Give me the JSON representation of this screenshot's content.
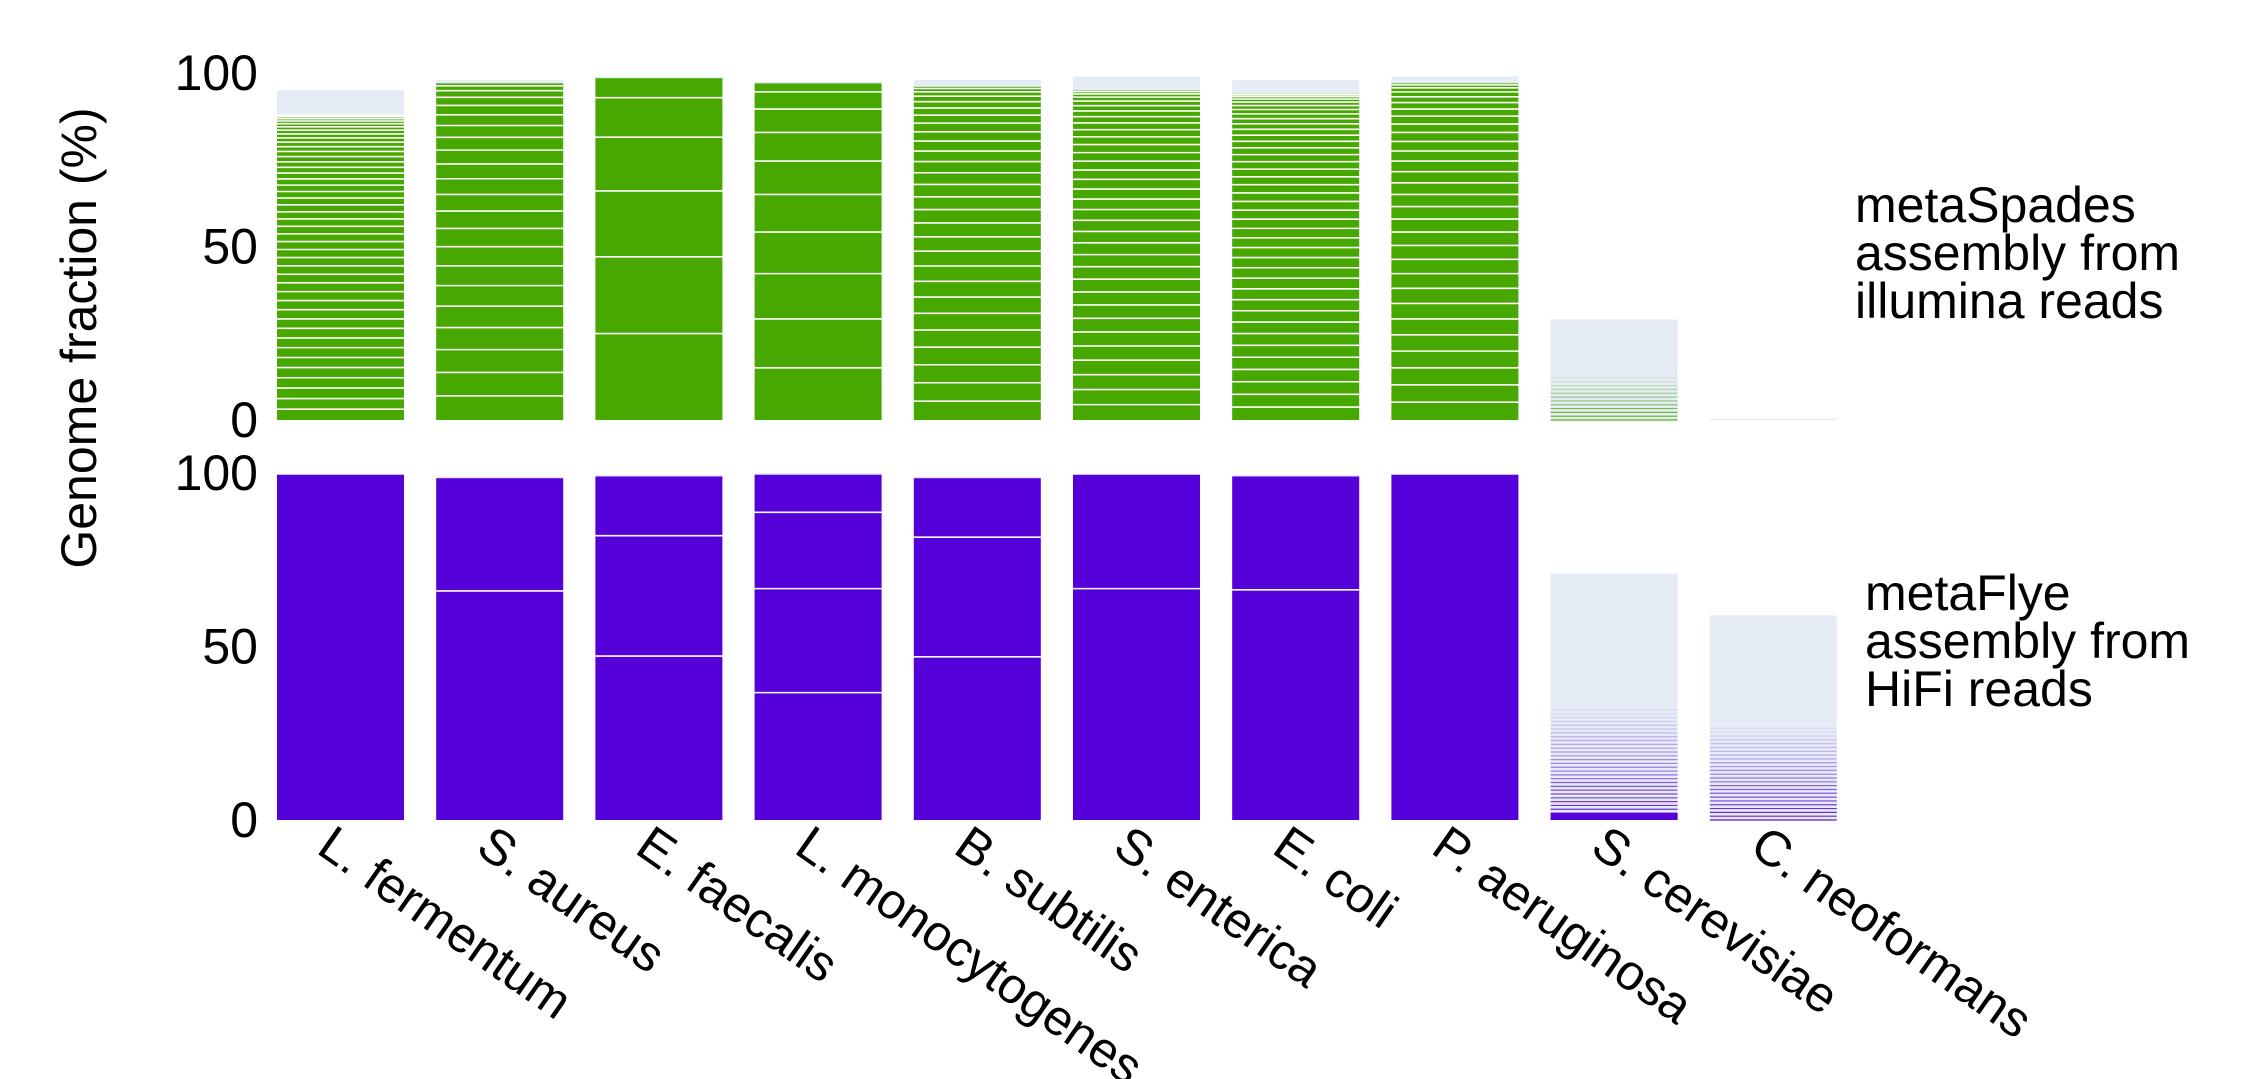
{
  "colors": {
    "metaspades": "#46a800",
    "metaflye": "#5500d9",
    "background_bar": "#e6ecf6",
    "separator": "#ffffff"
  },
  "chart_data": {
    "type": "bar",
    "ylabel": "Genome fraction (%)",
    "ylim": [
      0,
      100
    ],
    "yticks": [
      "0",
      "50",
      "100"
    ],
    "grid": false,
    "categories": [
      "L. fermentum",
      "S. aureus",
      "E. faecalis",
      "L. monocytogenes",
      "B. subtilis",
      "S. enterica",
      "E. coli",
      "P. aeruginosa",
      "S. cerevisiae",
      "C. neoformans"
    ],
    "panels": [
      {
        "label_lines": [
          "metaSpades",
          "assembly from",
          "illumina reads"
        ],
        "color_key": "metaspades",
        "bars": [
          {
            "total": 95,
            "solid": 88,
            "contigs": 45
          },
          {
            "total": 98,
            "solid": 97,
            "contigs": 22
          },
          {
            "total": 99,
            "solid": 98.5,
            "contigs": 6
          },
          {
            "total": 97.5,
            "solid": 97,
            "contigs": 10
          },
          {
            "total": 98,
            "solid": 96,
            "contigs": 28
          },
          {
            "total": 99,
            "solid": 95,
            "contigs": 34
          },
          {
            "total": 98,
            "solid": 94,
            "contigs": 40
          },
          {
            "total": 99,
            "solid": 97,
            "contigs": 30
          },
          {
            "total": 29,
            "solid": 0,
            "contigs": 0
          },
          {
            "total": 0.4,
            "solid": 0,
            "contigs": 0
          }
        ]
      },
      {
        "label_lines": [
          "metaFlye",
          "assembly from",
          "HiFi reads"
        ],
        "color_key": "metaflye",
        "bars": [
          {
            "total": 99.5,
            "solid": 99.5,
            "contigs": 1
          },
          {
            "total": 99,
            "solid": 98.5,
            "contigs": 2
          },
          {
            "total": 99.5,
            "solid": 99,
            "contigs": 3
          },
          {
            "total": 100,
            "solid": 99.5,
            "contigs": 4
          },
          {
            "total": 99,
            "solid": 98.5,
            "contigs": 3
          },
          {
            "total": 99.5,
            "solid": 99.5,
            "contigs": 2
          },
          {
            "total": 99.5,
            "solid": 99,
            "contigs": 2
          },
          {
            "total": 99.5,
            "solid": 99.5,
            "contigs": 1
          },
          {
            "total": 71,
            "solid": 2,
            "contigs": 0
          },
          {
            "total": 59,
            "solid": 0,
            "contigs": 0
          }
        ]
      }
    ]
  }
}
